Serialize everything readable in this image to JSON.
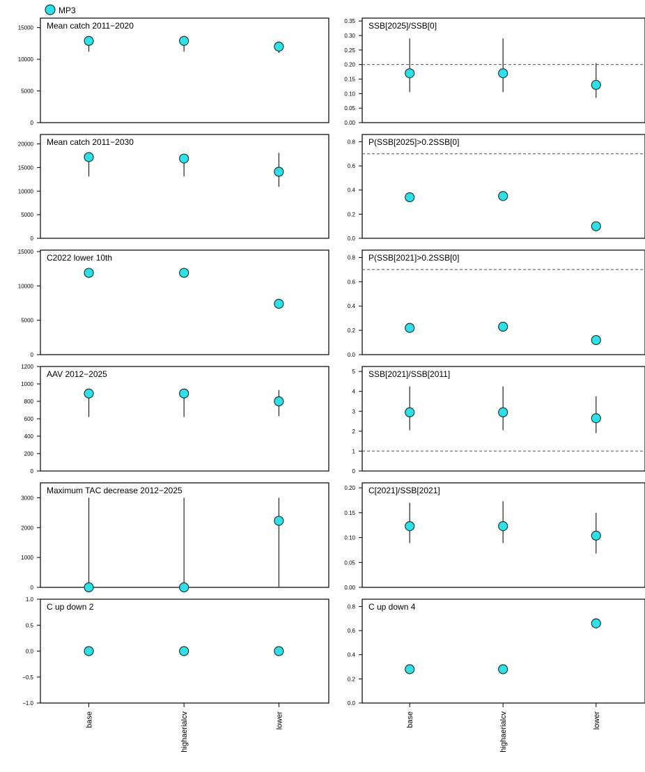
{
  "legend": {
    "label": "MP3",
    "color": "#2fe0e8"
  },
  "colors": {
    "point": "#2fe0e8",
    "point_stroke": "#1a3a3a",
    "axis": "#000000",
    "reference_line": "#555555"
  },
  "categories": [
    "base",
    "highaerialcv",
    "lower"
  ],
  "chart_data": [
    {
      "type": "scatter",
      "title": "Mean catch 2011−2020",
      "ylim": [
        0,
        16500
      ],
      "ticks": [
        0,
        5000,
        10000,
        15000
      ],
      "tick_labels": [
        "0",
        "5000",
        "10000",
        "15000"
      ],
      "values": [
        12900,
        12900,
        12000
      ],
      "lower": [
        11200,
        11200,
        11000
      ],
      "upper": [
        13200,
        13200,
        12800
      ]
    },
    {
      "type": "scatter",
      "title": "SSB[2025]/SSB[0]",
      "ylim": [
        0,
        0.36
      ],
      "ticks": [
        0,
        0.05,
        0.1,
        0.15,
        0.2,
        0.25,
        0.3,
        0.35
      ],
      "tick_labels": [
        "0.00",
        "0.05",
        "0.10",
        "0.15",
        "0.20",
        "0.25",
        "0.30",
        "0.35"
      ],
      "values": [
        0.17,
        0.17,
        0.13
      ],
      "lower": [
        0.105,
        0.105,
        0.085
      ],
      "upper": [
        0.29,
        0.29,
        0.205
      ],
      "reference": 0.2
    },
    {
      "type": "scatter",
      "title": "Mean catch 2011−2030",
      "ylim": [
        0,
        22000
      ],
      "ticks": [
        0,
        5000,
        10000,
        15000,
        20000
      ],
      "tick_labels": [
        "0",
        "5000",
        "10000",
        "15000",
        "20000"
      ],
      "values": [
        17200,
        16900,
        14100
      ],
      "lower": [
        13100,
        13100,
        10900
      ],
      "upper": [
        17700,
        17500,
        18100
      ]
    },
    {
      "type": "scatter",
      "title": "P(SSB[2025]>0.2SSB[0]",
      "ylim": [
        0,
        0.86
      ],
      "ticks": [
        0,
        0.2,
        0.4,
        0.6,
        0.8
      ],
      "tick_labels": [
        "0.0",
        "0.2",
        "0.4",
        "0.6",
        "0.8"
      ],
      "values": [
        0.34,
        0.35,
        0.1
      ],
      "lower": [
        0.34,
        0.35,
        0.1
      ],
      "upper": [
        0.34,
        0.35,
        0.1
      ],
      "reference": 0.7
    },
    {
      "type": "scatter",
      "title": "C2022 lower 10th",
      "ylim": [
        0,
        15200
      ],
      "ticks": [
        0,
        5000,
        10000,
        15000
      ],
      "tick_labels": [
        "0",
        "5000",
        "10000",
        "15000"
      ],
      "values": [
        11900,
        11900,
        7400
      ],
      "lower": [
        11900,
        11900,
        7400
      ],
      "upper": [
        11900,
        11900,
        7400
      ]
    },
    {
      "type": "scatter",
      "title": "P(SSB[2021]>0.2SSB[0]",
      "ylim": [
        0,
        0.86
      ],
      "ticks": [
        0,
        0.2,
        0.4,
        0.6,
        0.8
      ],
      "tick_labels": [
        "0.0",
        "0.2",
        "0.4",
        "0.6",
        "0.8"
      ],
      "values": [
        0.22,
        0.23,
        0.12
      ],
      "lower": [
        0.22,
        0.23,
        0.12
      ],
      "upper": [
        0.22,
        0.23,
        0.12
      ],
      "reference": 0.7
    },
    {
      "type": "scatter",
      "title": "AAV 2012−2025",
      "ylim": [
        0,
        1200
      ],
      "ticks": [
        0,
        200,
        400,
        600,
        800,
        1000,
        1200
      ],
      "tick_labels": [
        "0",
        "200",
        "400",
        "600",
        "800",
        "1000",
        "1200"
      ],
      "values": [
        890,
        890,
        800
      ],
      "lower": [
        620,
        620,
        630
      ],
      "upper": [
        940,
        940,
        930
      ]
    },
    {
      "type": "scatter",
      "title": "SSB[2021]/SSB[2011]",
      "ylim": [
        0,
        5.25
      ],
      "ticks": [
        0,
        1,
        2,
        3,
        4,
        5
      ],
      "tick_labels": [
        "0",
        "1",
        "2",
        "3",
        "4",
        "5"
      ],
      "values": [
        2.95,
        2.95,
        2.65
      ],
      "lower": [
        2.05,
        2.05,
        1.9
      ],
      "upper": [
        4.25,
        4.25,
        3.75
      ],
      "reference": 1
    },
    {
      "type": "scatter",
      "title": "Maximum TAC decrease 2012−2025",
      "ylim": [
        0,
        3500
      ],
      "ticks": [
        0,
        1000,
        2000,
        3000
      ],
      "tick_labels": [
        "0",
        "1000",
        "2000",
        "3000"
      ],
      "values": [
        0,
        0,
        2230
      ],
      "lower": [
        0,
        0,
        0
      ],
      "upper": [
        3000,
        3000,
        3000
      ]
    },
    {
      "type": "scatter",
      "title": "C[2021]/SSB[2021]",
      "ylim": [
        0,
        0.21
      ],
      "ticks": [
        0,
        0.05,
        0.1,
        0.15,
        0.2
      ],
      "tick_labels": [
        "0.00",
        "0.05",
        "0.10",
        "0.15",
        "0.20"
      ],
      "values": [
        0.123,
        0.123,
        0.104
      ],
      "lower": [
        0.089,
        0.089,
        0.068
      ],
      "upper": [
        0.17,
        0.173,
        0.15
      ]
    },
    {
      "type": "scatter",
      "title": "C up down 2",
      "ylim": [
        -1.0,
        1.0
      ],
      "ticks": [
        -1.0,
        -0.5,
        0.0,
        0.5,
        1.0
      ],
      "tick_labels": [
        "−1.0",
        "−0.5",
        "0.0",
        "0.5",
        "1.0"
      ],
      "values": [
        0,
        0,
        0
      ],
      "lower": [
        0,
        0,
        0
      ],
      "upper": [
        0,
        0,
        0
      ]
    },
    {
      "type": "scatter",
      "title": "C up down 4",
      "ylim": [
        0,
        0.86
      ],
      "ticks": [
        0,
        0.2,
        0.4,
        0.6,
        0.8
      ],
      "tick_labels": [
        "0.0",
        "0.2",
        "0.4",
        "0.6",
        "0.8"
      ],
      "values": [
        0.28,
        0.28,
        0.66
      ],
      "lower": [
        0.28,
        0.28,
        0.66
      ],
      "upper": [
        0.28,
        0.28,
        0.66
      ]
    }
  ]
}
